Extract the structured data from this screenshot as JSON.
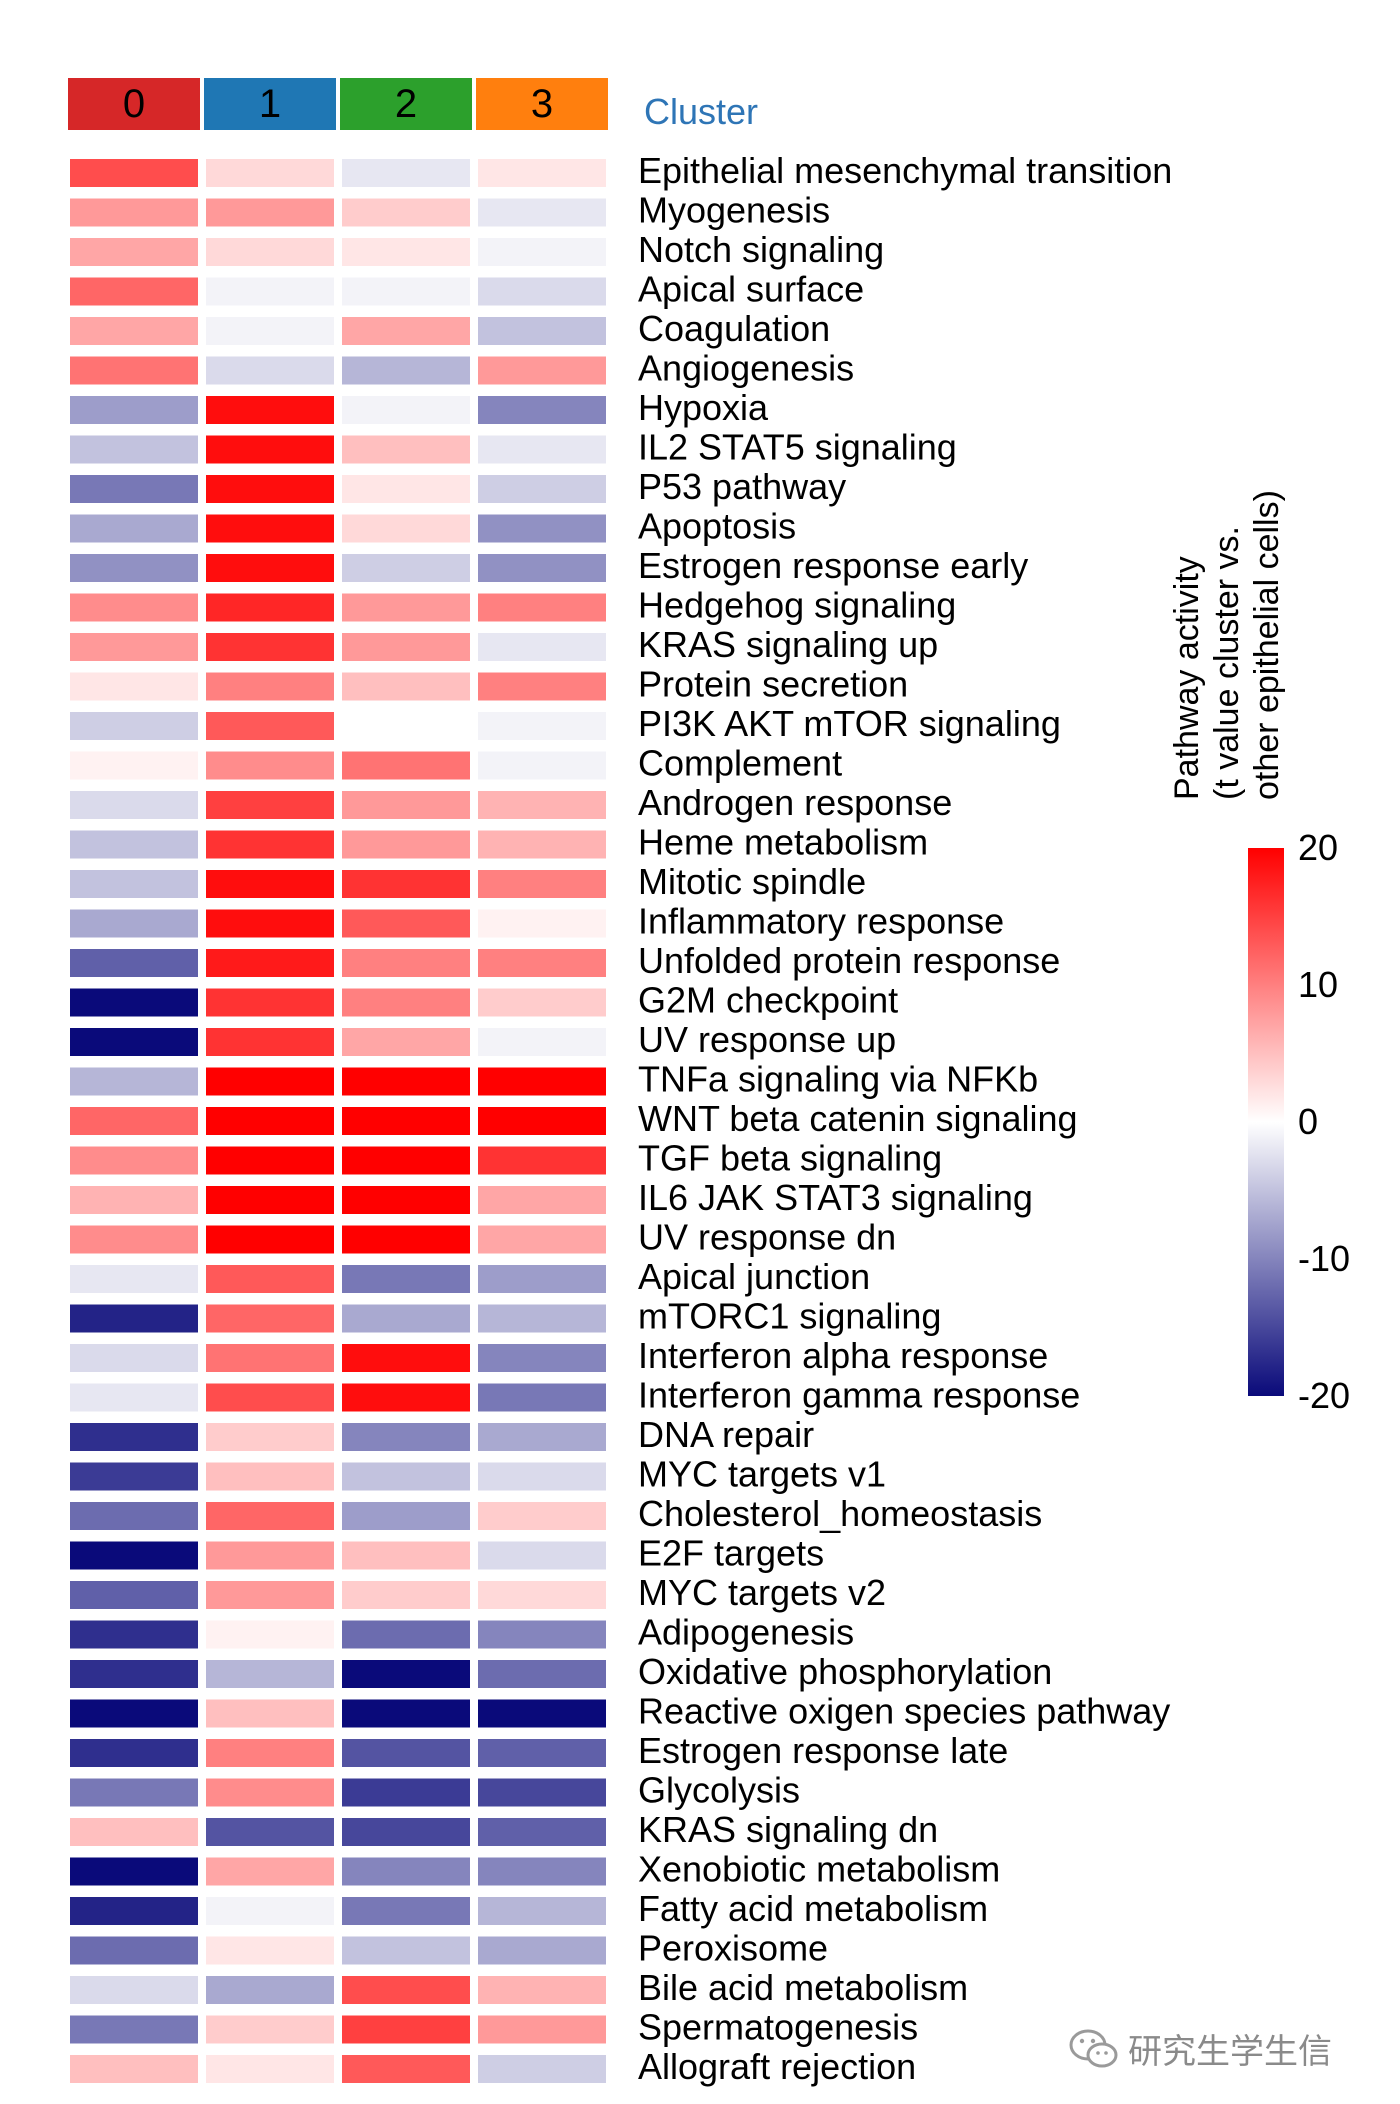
{
  "chart_data": {
    "type": "heatmap",
    "cluster_header": "Cluster",
    "clusters": [
      "0",
      "1",
      "2",
      "3"
    ],
    "cluster_colors": [
      "#d62728",
      "#1f77b4",
      "#2ca02c",
      "#ff7f0e"
    ],
    "rows": [
      "Epithelial mesenchymal transition",
      "Myogenesis",
      "Notch signaling",
      "Apical surface",
      "Coagulation",
      "Angiogenesis",
      "Hypoxia",
      "IL2 STAT5 signaling",
      "P53 pathway",
      "Apoptosis",
      "Estrogen response early",
      "Hedgehog signaling",
      "KRAS signaling up",
      "Protein secretion",
      "PI3K AKT mTOR signaling",
      "Complement",
      "Androgen response",
      "Heme metabolism",
      "Mitotic spindle",
      "Inflammatory response",
      "Unfolded protein response",
      "G2M checkpoint",
      "UV response up",
      "TNFa signaling via NFKb",
      "WNT beta catenin signaling",
      "TGF beta signaling",
      "IL6 JAK STAT3 signaling",
      "UV response dn",
      "Apical junction",
      "mTORC1 signaling",
      "Interferon alpha response",
      "Interferon gamma response",
      "DNA repair",
      "MYC targets v1",
      "Cholesterol_homeostasis",
      "E2F targets",
      "MYC targets v2",
      "Adipogenesis",
      "Oxidative phosphorylation",
      "Reactive oxigen species pathway",
      "Estrogen response late",
      "Glycolysis",
      "KRAS signaling dn",
      "Xenobiotic metabolism",
      "Fatty acid metabolism",
      "Peroxisome",
      "Bile acid metabolism",
      "Spermatogenesis",
      "Allograft rejection"
    ],
    "values": [
      [
        14,
        3,
        -2,
        2
      ],
      [
        8,
        8,
        4,
        -2
      ],
      [
        7,
        3,
        2,
        -1
      ],
      [
        12,
        -1,
        -1,
        -3
      ],
      [
        7,
        -1,
        7,
        -5
      ],
      [
        11,
        -3,
        -6,
        8
      ],
      [
        -8,
        19,
        -1,
        -10
      ],
      [
        -5,
        19,
        5,
        -2
      ],
      [
        -11,
        19,
        2,
        -4
      ],
      [
        -7,
        19,
        3,
        -9
      ],
      [
        -9,
        19,
        -4,
        -9
      ],
      [
        9,
        17,
        8,
        10
      ],
      [
        8,
        16,
        8,
        -2
      ],
      [
        2,
        10,
        5,
        10
      ],
      [
        -4,
        13,
        0,
        -1
      ],
      [
        1,
        9,
        11,
        -1
      ],
      [
        -3,
        15,
        8,
        6
      ],
      [
        -5,
        16,
        8,
        6
      ],
      [
        -5,
        19,
        16,
        10
      ],
      [
        -7,
        19,
        13,
        1
      ],
      [
        -13,
        18,
        10,
        10
      ],
      [
        -20,
        16,
        10,
        4
      ],
      [
        -20,
        16,
        7,
        -1
      ],
      [
        -6,
        20,
        20,
        20
      ],
      [
        12,
        20,
        20,
        20
      ],
      [
        9,
        20,
        20,
        16
      ],
      [
        6,
        20,
        20,
        7
      ],
      [
        9,
        20,
        20,
        7
      ],
      [
        -2,
        13,
        -11,
        -8
      ],
      [
        -18,
        12,
        -7,
        -6
      ],
      [
        -3,
        11,
        19,
        -10
      ],
      [
        -2,
        14,
        19,
        -11
      ],
      [
        -17,
        4,
        -10,
        -7
      ],
      [
        -16,
        5,
        -5,
        -3
      ],
      [
        -12,
        12,
        -8,
        4
      ],
      [
        -20,
        8,
        5,
        -3
      ],
      [
        -13,
        8,
        4,
        3
      ],
      [
        -17,
        1,
        -12,
        -10
      ],
      [
        -17,
        -6,
        -20,
        -12
      ],
      [
        -20,
        5,
        -20,
        -20
      ],
      [
        -17,
        10,
        -14,
        -13
      ],
      [
        -11,
        9,
        -16,
        -15
      ],
      [
        5,
        -14,
        -15,
        -13
      ],
      [
        -20,
        7,
        -10,
        -10
      ],
      [
        -18,
        -1,
        -11,
        -6
      ],
      [
        -12,
        2,
        -5,
        -7
      ],
      [
        -3,
        -7,
        14,
        6
      ],
      [
        -11,
        4,
        15,
        8
      ],
      [
        5,
        2,
        13,
        -4
      ]
    ],
    "colorbar": {
      "title_line1": "Pathway activity",
      "title_line2": "(t value cluster vs.",
      "title_line3": "other epithelial cells)",
      "range": [
        -20,
        20
      ],
      "ticks": [
        "20",
        "10",
        "0",
        "-10",
        "-20"
      ],
      "colors": {
        "low": "#0a0a7a",
        "mid": "#ffffff",
        "high": "#ff0000"
      }
    }
  },
  "watermark": {
    "text": "研究生学生信",
    "icon": "wechat-icon"
  }
}
